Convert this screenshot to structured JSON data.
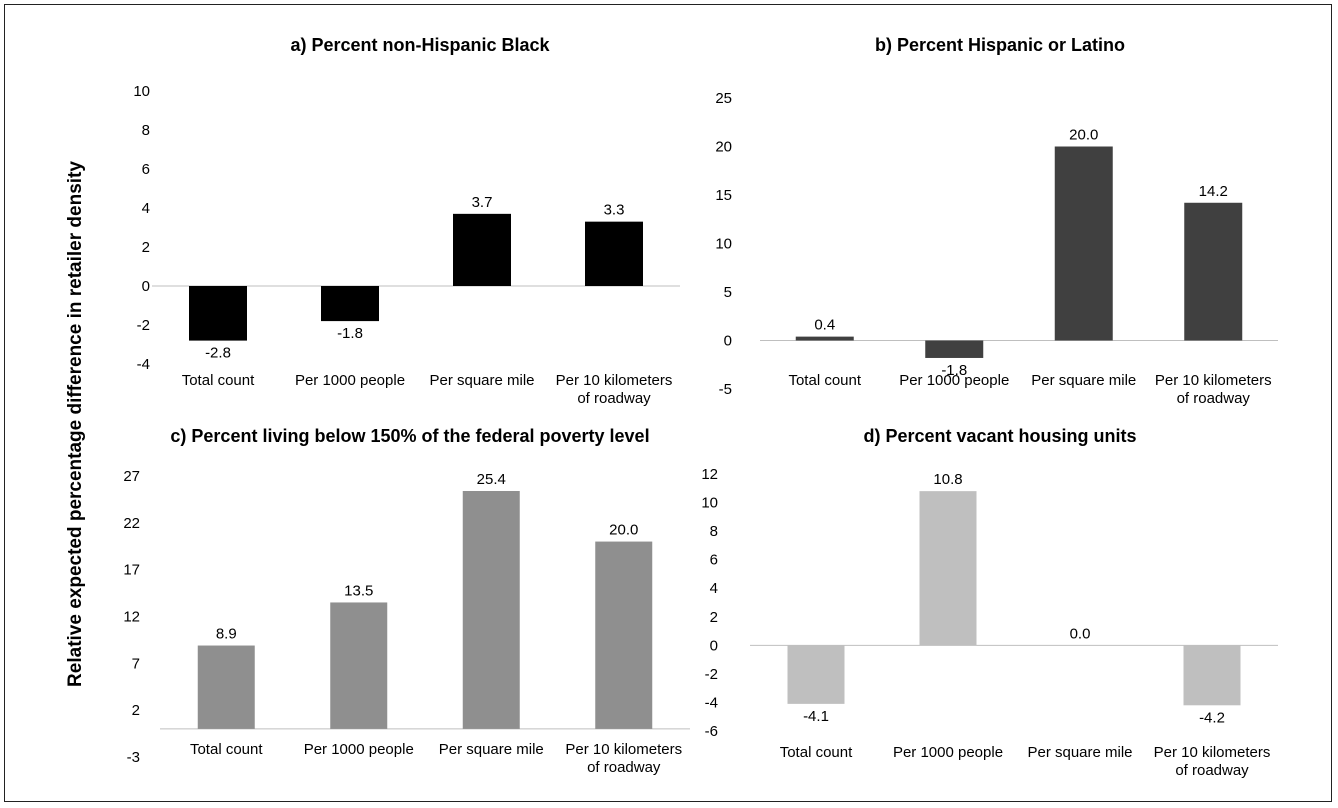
{
  "ylabel": "Relative expected percentage difference in retailer density",
  "chart_data": [
    {
      "type": "bar",
      "title": "a) Percent non-Hispanic Black",
      "categories": [
        "Total count",
        "Per 1000 people",
        "Per square mile",
        "Per 10 kilometers of roadway"
      ],
      "values": [
        -2.8,
        -1.8,
        3.7,
        3.3
      ],
      "labels": [
        "-2.8",
        "-1.8",
        "3.7",
        "3.3"
      ],
      "ylim": [
        -4,
        10
      ],
      "yticks": [
        -4,
        -2,
        0,
        2,
        4,
        6,
        8,
        10
      ],
      "color": "#000000"
    },
    {
      "type": "bar",
      "title": "b) Percent Hispanic or Latino",
      "categories": [
        "Total count",
        "Per 1000 people",
        "Per square mile",
        "Per 10 kilometers of roadway"
      ],
      "values": [
        0.4,
        -1.8,
        20.0,
        14.2
      ],
      "labels": [
        "0.4",
        "-1.8",
        "20.0",
        "14.2"
      ],
      "ylim": [
        -5,
        25
      ],
      "yticks": [
        -5,
        0,
        5,
        10,
        15,
        20,
        25
      ],
      "color": "#404040"
    },
    {
      "type": "bar",
      "title": "c) Percent living below 150% of the federal poverty level",
      "categories": [
        "Total count",
        "Per 1000 people",
        "Per square mile",
        "Per 10 kilometers of roadway"
      ],
      "values": [
        8.9,
        13.5,
        25.4,
        20.0
      ],
      "labels": [
        "8.9",
        "13.5",
        "25.4",
        "20.0"
      ],
      "ylim": [
        -3,
        27
      ],
      "yticks": [
        -3,
        2,
        7,
        12,
        17,
        22,
        27
      ],
      "color": "#8f8f8f"
    },
    {
      "type": "bar",
      "title": "d) Percent vacant housing units",
      "categories": [
        "Total count",
        "Per 1000 people",
        "Per square mile",
        "Per 10 kilometers of roadway"
      ],
      "values": [
        -4.1,
        10.8,
        0.0,
        -4.2
      ],
      "labels": [
        "-4.1",
        "10.8",
        "0.0",
        "-4.2"
      ],
      "ylim": [
        -6,
        12
      ],
      "yticks": [
        -6,
        -4,
        -2,
        0,
        2,
        4,
        6,
        8,
        10,
        12
      ],
      "color": "#bfbfbf"
    }
  ]
}
